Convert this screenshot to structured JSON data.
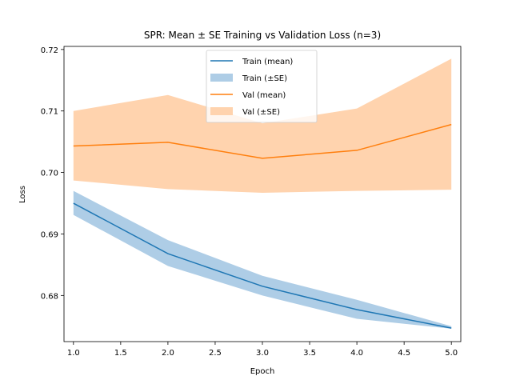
{
  "chart_data": {
    "type": "line",
    "title": "SPR: Mean ± SE Training vs Validation Loss (n=3)",
    "xlabel": "Epoch",
    "ylabel": "Loss",
    "x": [
      1,
      2,
      3,
      4,
      5
    ],
    "xlim": [
      0.9,
      5.1
    ],
    "ylim": [
      0.6725,
      0.7205
    ],
    "xticks": [
      "1.0",
      "1.5",
      "2.0",
      "2.5",
      "3.0",
      "3.5",
      "4.0",
      "4.5",
      "5.0"
    ],
    "yticks": [
      "0.68",
      "0.69",
      "0.70",
      "0.71",
      "0.72"
    ],
    "grid": false,
    "legend_position": "upper center",
    "series": [
      {
        "name": "Train (mean)",
        "band_name": "Train (±SE)",
        "color": "#1f77b4",
        "band_color": "#aecde6",
        "mean": [
          0.695,
          0.6868,
          0.6815,
          0.6777,
          0.6747
        ],
        "upper": [
          0.697,
          0.689,
          0.6832,
          0.6793,
          0.675
        ],
        "lower": [
          0.6931,
          0.6848,
          0.68,
          0.6762,
          0.6746
        ]
      },
      {
        "name": "Val (mean)",
        "band_name": "Val (±SE)",
        "color": "#ff7f0e",
        "band_color": "#ffd3ae",
        "mean": [
          0.7043,
          0.7049,
          0.7023,
          0.7036,
          0.7078
        ],
        "upper": [
          0.71,
          0.7126,
          0.708,
          0.7104,
          0.7185
        ],
        "lower": [
          0.6987,
          0.6973,
          0.6967,
          0.697,
          0.6972
        ]
      }
    ]
  }
}
